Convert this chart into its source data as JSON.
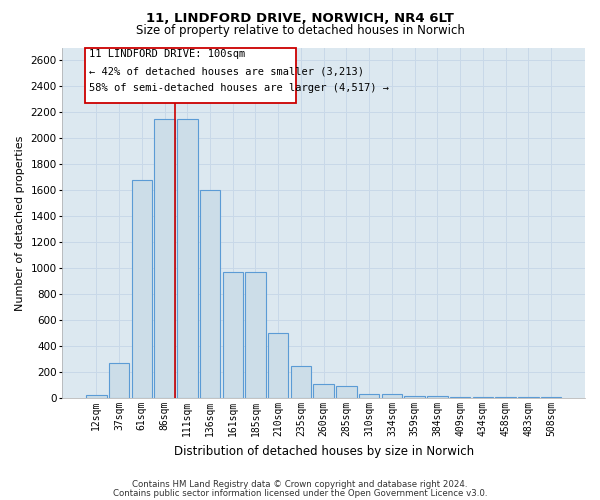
{
  "title_line1": "11, LINDFORD DRIVE, NORWICH, NR4 6LT",
  "title_line2": "Size of property relative to detached houses in Norwich",
  "xlabel": "Distribution of detached houses by size in Norwich",
  "ylabel": "Number of detached properties",
  "categories": [
    "12sqm",
    "37sqm",
    "61sqm",
    "86sqm",
    "111sqm",
    "136sqm",
    "161sqm",
    "185sqm",
    "210sqm",
    "235sqm",
    "260sqm",
    "285sqm",
    "310sqm",
    "334sqm",
    "359sqm",
    "384sqm",
    "409sqm",
    "434sqm",
    "458sqm",
    "483sqm",
    "508sqm"
  ],
  "values": [
    25,
    270,
    1680,
    2150,
    2150,
    1600,
    975,
    975,
    500,
    245,
    110,
    90,
    35,
    35,
    20,
    20,
    10,
    10,
    10,
    10,
    5
  ],
  "bar_color": "#ccdde8",
  "bar_edge_color": "#5b9bd5",
  "vline_color": "#cc0000",
  "annotation_line1": "11 LINDFORD DRIVE: 100sqm",
  "annotation_line2": "← 42% of detached houses are smaller (3,213)",
  "annotation_line3": "58% of semi-detached houses are larger (4,517) →",
  "ylim": [
    0,
    2700
  ],
  "yticks": [
    0,
    200,
    400,
    600,
    800,
    1000,
    1200,
    1400,
    1600,
    1800,
    2000,
    2200,
    2400,
    2600
  ],
  "grid_color": "#c8d8e8",
  "background_color": "#dce8f0",
  "footer_line1": "Contains HM Land Registry data © Crown copyright and database right 2024.",
  "footer_line2": "Contains public sector information licensed under the Open Government Licence v3.0."
}
